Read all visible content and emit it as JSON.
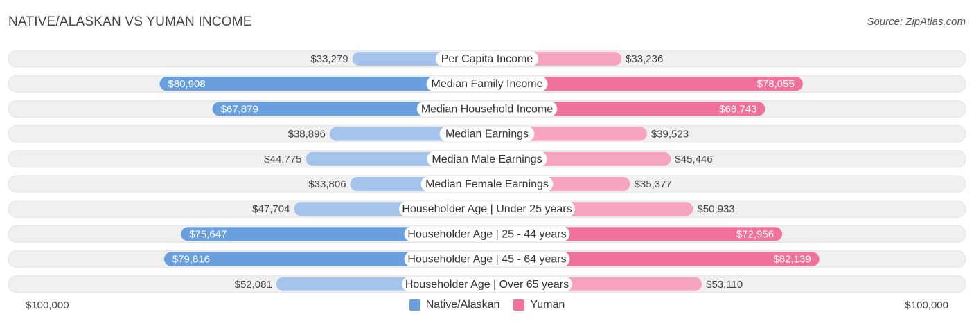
{
  "title": "NATIVE/ALASKAN VS YUMAN INCOME",
  "source": "Source: ZipAtlas.com",
  "axis": {
    "left_label": "$100,000",
    "right_label": "$100,000"
  },
  "colors": {
    "left_strong": "#6a9fdd",
    "left_light": "#a4c4ec",
    "right_strong": "#f07199",
    "right_light": "#f6a4bf",
    "track": "#ececec"
  },
  "legend": [
    {
      "label": "Native/Alaskan",
      "color": "#6a9fdd"
    },
    {
      "label": "Yuman",
      "color": "#f07199"
    }
  ],
  "chart_data": {
    "type": "bar",
    "orientation": "diverging-horizontal",
    "max": 100000,
    "categories": [
      "Per Capita Income",
      "Median Family Income",
      "Median Household Income",
      "Median Earnings",
      "Median Male Earnings",
      "Median Female Earnings",
      "Householder Age | Under 25 years",
      "Householder Age | 25 - 44 years",
      "Householder Age | 45 - 64 years",
      "Householder Age | Over 65 years"
    ],
    "series": [
      {
        "name": "Native/Alaskan",
        "values": [
          33279,
          80908,
          67879,
          38896,
          44775,
          33806,
          47704,
          75647,
          79816,
          52081
        ],
        "labels": [
          "$33,279",
          "$80,908",
          "$67,879",
          "$38,896",
          "$44,775",
          "$33,806",
          "$47,704",
          "$75,647",
          "$79,816",
          "$52,081"
        ]
      },
      {
        "name": "Yuman",
        "values": [
          33236,
          78055,
          68743,
          39523,
          45446,
          35377,
          50933,
          72956,
          82139,
          53110
        ],
        "labels": [
          "$33,236",
          "$78,055",
          "$68,743",
          "$39,523",
          "$45,446",
          "$35,377",
          "$50,933",
          "$72,956",
          "$82,139",
          "$53,110"
        ]
      }
    ]
  }
}
